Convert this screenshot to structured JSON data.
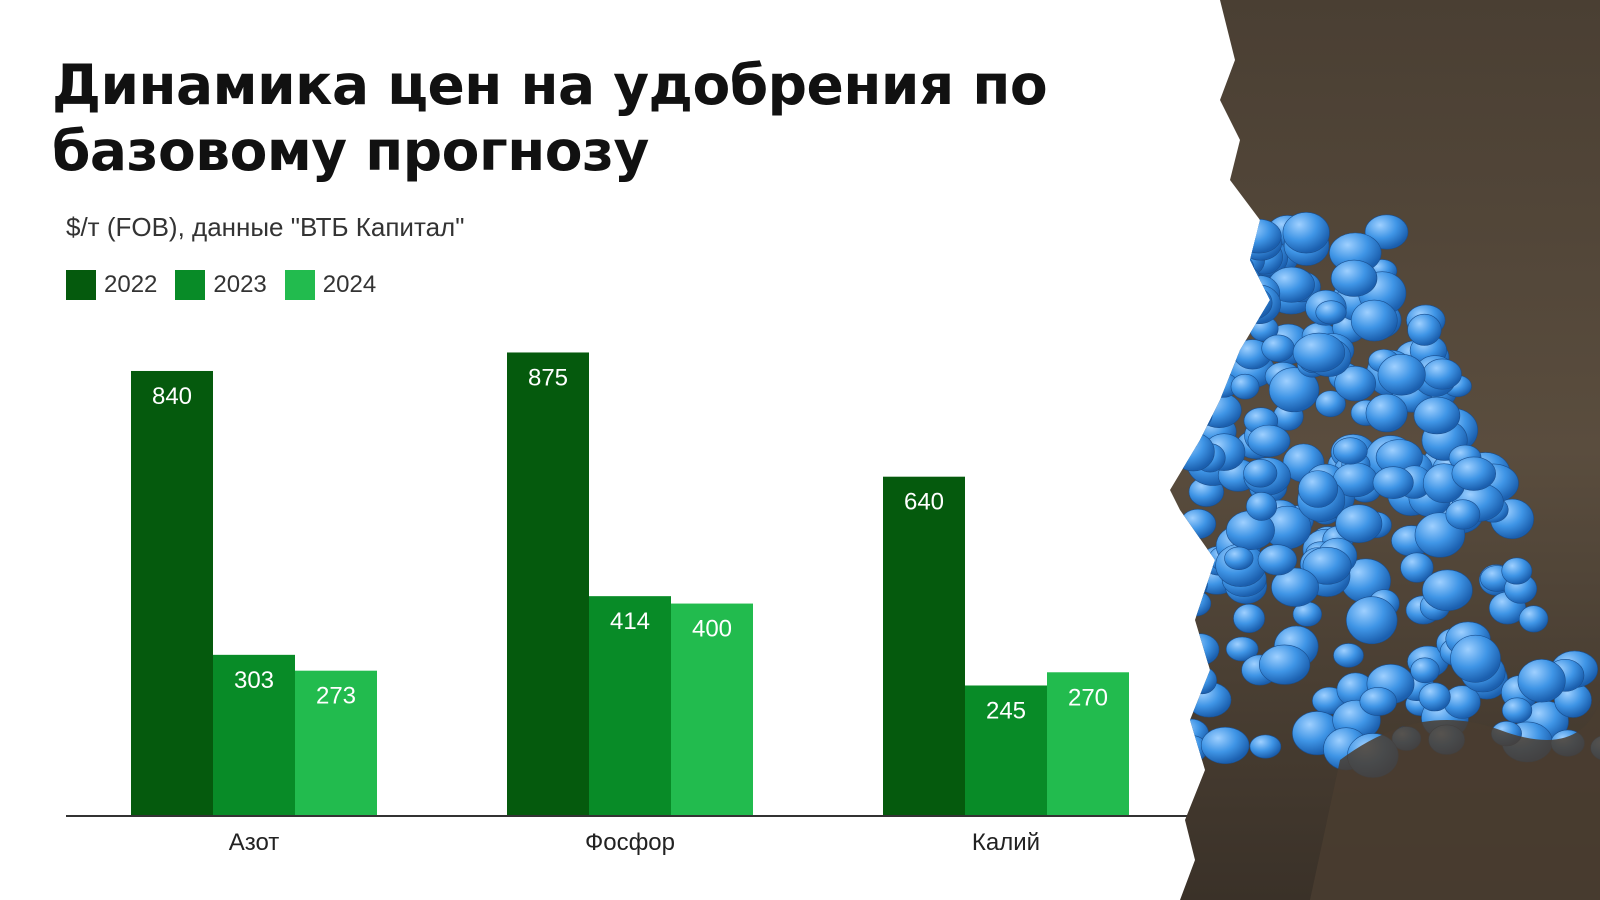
{
  "colors": {
    "y2022": "#055a0d",
    "y2023": "#088b27",
    "y2024": "#22bb4e",
    "axis": "#333333"
  },
  "chart_data": {
    "type": "bar",
    "title": "Динамика цен на удобрения по базовому прогнозу",
    "subtitle": "$/т (FOB), данные \"ВТБ Капитал\"",
    "categories": [
      "Азот",
      "Фосфор",
      "Калий"
    ],
    "series": [
      {
        "name": "2022",
        "values": [
          840,
          875,
          640
        ]
      },
      {
        "name": "2023",
        "values": [
          303,
          414,
          245
        ]
      },
      {
        "name": "2024",
        "values": [
          273,
          400,
          270
        ]
      }
    ],
    "xlabel": "",
    "ylabel": "",
    "ylim": [
      0,
      900
    ],
    "grid": false,
    "legend": "top-left"
  },
  "photo": {
    "icon": "blue-fertilizer-granules-photo"
  }
}
